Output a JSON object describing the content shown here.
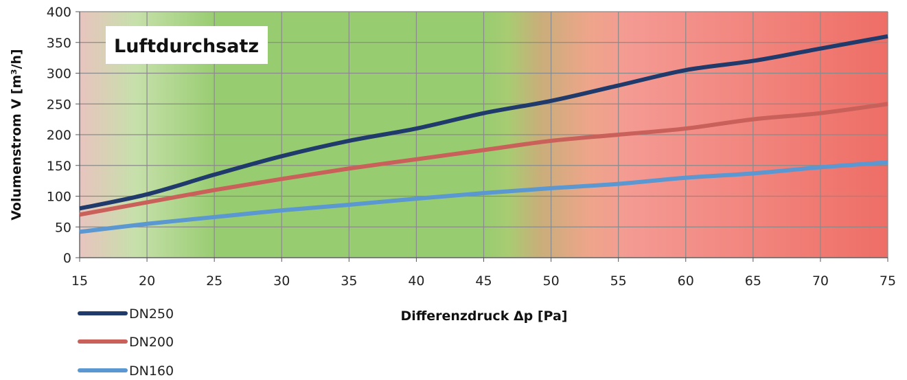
{
  "chart_data": {
    "type": "line",
    "title": "Luftdurchsatz",
    "xlabel": "Differenzdruck Δp [Pa]",
    "ylabel": "Volumenstrom V [m³/h]",
    "xlim": [
      15,
      75
    ],
    "ylim": [
      0,
      400
    ],
    "x_ticks": [
      15,
      20,
      25,
      30,
      35,
      40,
      45,
      50,
      55,
      60,
      65,
      70,
      75
    ],
    "y_ticks": [
      0,
      50,
      100,
      150,
      200,
      250,
      300,
      350,
      400
    ],
    "grid": true,
    "legend_position": "bottom-left",
    "background_zones": [
      "red",
      "green",
      "red"
    ],
    "series": [
      {
        "name": "DN250",
        "color": "#1f3a6b",
        "x": [
          15,
          20,
          25,
          30,
          35,
          40,
          45,
          50,
          55,
          60,
          65,
          70,
          75
        ],
        "y": [
          80,
          103,
          135,
          165,
          190,
          210,
          235,
          255,
          280,
          305,
          320,
          340,
          360
        ]
      },
      {
        "name": "DN200",
        "color": "#c9605a",
        "x": [
          15,
          20,
          25,
          30,
          35,
          40,
          45,
          50,
          55,
          60,
          65,
          70,
          75
        ],
        "y": [
          70,
          90,
          110,
          128,
          145,
          160,
          175,
          190,
          200,
          210,
          225,
          235,
          250
        ]
      },
      {
        "name": "DN160",
        "color": "#5b97d1",
        "x": [
          15,
          20,
          25,
          30,
          35,
          40,
          45,
          50,
          55,
          60,
          65,
          70,
          75
        ],
        "y": [
          42,
          55,
          66,
          77,
          86,
          96,
          105,
          113,
          120,
          130,
          137,
          147,
          155
        ]
      }
    ]
  }
}
